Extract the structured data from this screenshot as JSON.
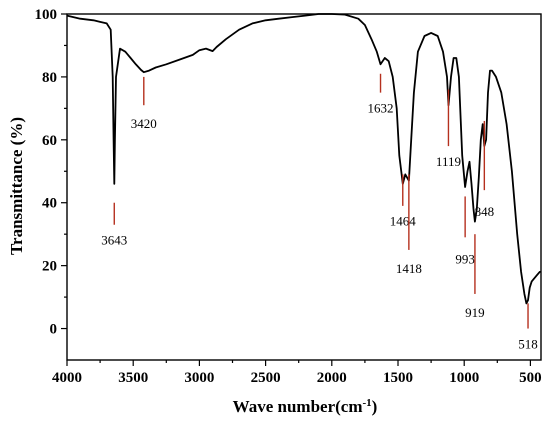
{
  "chart_data": {
    "type": "line",
    "title": "",
    "xlabel_main": "Wave number(cm",
    "xlabel_sup": "-1",
    "xlabel_close": ")",
    "ylabel": "Transmittance (%)",
    "xlim": [
      4000,
      420
    ],
    "ylim": [
      -10,
      100
    ],
    "x_reversed": true,
    "grid": false,
    "x_ticks": [
      4000,
      3500,
      3000,
      2500,
      2000,
      1500,
      1000,
      500
    ],
    "y_ticks": [
      0,
      20,
      40,
      60,
      80,
      100
    ],
    "series": [
      {
        "color": "#000000",
        "points": [
          [
            4000,
            99.5
          ],
          [
            3900,
            98.5
          ],
          [
            3800,
            98
          ],
          [
            3750,
            97.5
          ],
          [
            3700,
            97
          ],
          [
            3670,
            95
          ],
          [
            3655,
            80
          ],
          [
            3648,
            60
          ],
          [
            3643,
            46
          ],
          [
            3638,
            60
          ],
          [
            3630,
            80
          ],
          [
            3600,
            89
          ],
          [
            3560,
            88
          ],
          [
            3520,
            86
          ],
          [
            3480,
            84
          ],
          [
            3440,
            82.2
          ],
          [
            3420,
            81.5
          ],
          [
            3380,
            82
          ],
          [
            3330,
            83
          ],
          [
            3250,
            84
          ],
          [
            3150,
            85.5
          ],
          [
            3050,
            87
          ],
          [
            3000,
            88.5
          ],
          [
            2950,
            89
          ],
          [
            2900,
            88.2
          ],
          [
            2870,
            89.5
          ],
          [
            2800,
            92
          ],
          [
            2700,
            95
          ],
          [
            2600,
            97
          ],
          [
            2500,
            98
          ],
          [
            2400,
            98.5
          ],
          [
            2300,
            99
          ],
          [
            2200,
            99.5
          ],
          [
            2100,
            100
          ],
          [
            2000,
            100
          ],
          [
            1900,
            99.8
          ],
          [
            1800,
            98.5
          ],
          [
            1750,
            96.5
          ],
          [
            1700,
            92
          ],
          [
            1660,
            88
          ],
          [
            1632,
            84
          ],
          [
            1600,
            86
          ],
          [
            1570,
            85
          ],
          [
            1540,
            80
          ],
          [
            1510,
            70
          ],
          [
            1490,
            55
          ],
          [
            1464,
            46
          ],
          [
            1445,
            49
          ],
          [
            1418,
            47
          ],
          [
            1400,
            60
          ],
          [
            1380,
            75
          ],
          [
            1350,
            88
          ],
          [
            1300,
            93
          ],
          [
            1250,
            94
          ],
          [
            1200,
            93
          ],
          [
            1160,
            88
          ],
          [
            1130,
            80
          ],
          [
            1119,
            71
          ],
          [
            1100,
            80
          ],
          [
            1080,
            86
          ],
          [
            1060,
            86
          ],
          [
            1040,
            80
          ],
          [
            1015,
            55
          ],
          [
            993,
            45
          ],
          [
            975,
            50
          ],
          [
            960,
            53
          ],
          [
            945,
            46
          ],
          [
            930,
            38
          ],
          [
            919,
            34
          ],
          [
            905,
            38
          ],
          [
            890,
            48
          ],
          [
            875,
            60
          ],
          [
            860,
            65
          ],
          [
            848,
            58
          ],
          [
            835,
            60
          ],
          [
            820,
            75
          ],
          [
            805,
            82
          ],
          [
            790,
            82
          ],
          [
            760,
            80
          ],
          [
            720,
            75
          ],
          [
            680,
            65
          ],
          [
            640,
            50
          ],
          [
            600,
            30
          ],
          [
            570,
            18
          ],
          [
            545,
            11
          ],
          [
            530,
            8
          ],
          [
            518,
            9
          ],
          [
            505,
            13
          ],
          [
            490,
            15
          ],
          [
            470,
            16
          ],
          [
            450,
            17
          ],
          [
            430,
            18
          ],
          [
            420,
            18
          ]
        ]
      }
    ],
    "annotations": [
      {
        "label": "3643",
        "x": 3643,
        "mark_top": 40,
        "mark_bottom": 33,
        "text_y": 28
      },
      {
        "label": "3420",
        "x": 3420,
        "mark_top": 80,
        "mark_bottom": 71,
        "text_y": 65
      },
      {
        "label": "1632",
        "x": 1632,
        "mark_top": 81,
        "mark_bottom": 75,
        "text_y": 70
      },
      {
        "label": "1464",
        "x": 1464,
        "mark_top": 49,
        "mark_bottom": 39,
        "text_y": 34
      },
      {
        "label": "1418",
        "x": 1418,
        "mark_top": 49,
        "mark_bottom": 25,
        "text_y": 19
      },
      {
        "label": "1119",
        "x": 1119,
        "mark_top": 76,
        "mark_bottom": 58,
        "text_y": 53
      },
      {
        "label": "993",
        "x": 993,
        "mark_top": 42,
        "mark_bottom": 29,
        "text_y": 22
      },
      {
        "label": "919",
        "x": 919,
        "mark_top": 30,
        "mark_bottom": 11,
        "text_y": 5
      },
      {
        "label": "848",
        "x": 848,
        "mark_top": 66,
        "mark_bottom": 44,
        "text_y": 37
      },
      {
        "label": "518",
        "x": 518,
        "mark_top": 8,
        "mark_bottom": 0,
        "text_y": -5
      }
    ]
  }
}
